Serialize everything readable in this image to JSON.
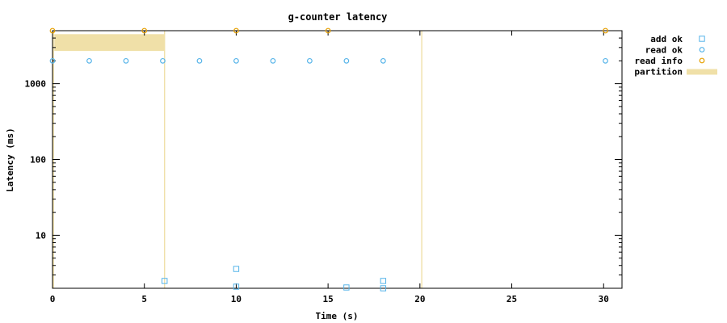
{
  "chart_data": {
    "type": "scatter",
    "title": "g-counter latency",
    "xlabel": "Time (s)",
    "ylabel": "Latency (ms)",
    "x_range": [
      0,
      31
    ],
    "y_range": [
      2,
      5000
    ],
    "y_scale": "log",
    "x_ticks": [
      "0",
      "5",
      "10",
      "15",
      "20",
      "25",
      "30"
    ],
    "y_ticks": [
      "10",
      "100",
      "1000"
    ],
    "legend_position": "top-right, outside plot",
    "series": [
      {
        "name": "add ok",
        "marker": "open-square",
        "color": "#56b4e9",
        "points": [
          [
            6.1,
            2.5
          ],
          [
            10.0,
            3.6
          ],
          [
            10.0,
            2.1
          ],
          [
            16.0,
            2.05
          ],
          [
            18.0,
            2.5
          ],
          [
            18.0,
            2.0
          ]
        ]
      },
      {
        "name": "read ok",
        "marker": "open-circle",
        "color": "#56b4e9",
        "points": [
          [
            0,
            2000
          ],
          [
            2,
            2000
          ],
          [
            4,
            2000
          ],
          [
            6,
            2000
          ],
          [
            8,
            2000
          ],
          [
            10,
            2000
          ],
          [
            12,
            2000
          ],
          [
            14,
            2000
          ],
          [
            16,
            2000
          ],
          [
            18,
            2000
          ],
          [
            30.1,
            2000
          ]
        ]
      },
      {
        "name": "read info",
        "marker": "open-circle",
        "color": "#e69f00",
        "points": [
          [
            0,
            5000
          ],
          [
            5,
            5000
          ],
          [
            10,
            5000
          ],
          [
            15,
            5000
          ],
          [
            30.1,
            5000
          ]
        ]
      },
      {
        "name": "partition",
        "marker": "band",
        "color": "#f0e0a8",
        "intervals": [
          [
            0.1,
            6.1
          ]
        ],
        "boundaries": [
          0.05,
          6.1,
          20.1
        ]
      }
    ]
  }
}
